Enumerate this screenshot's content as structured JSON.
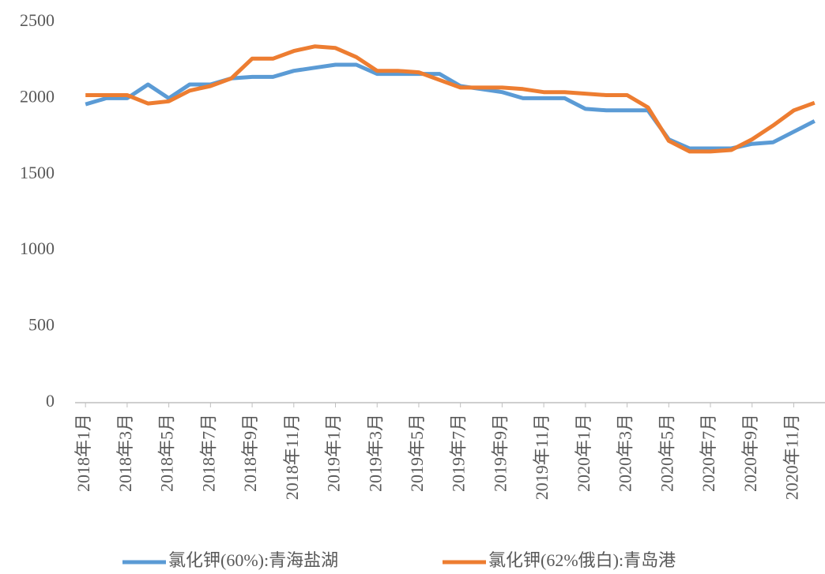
{
  "chart_data": {
    "type": "line",
    "categories": [
      "2018年1月",
      null,
      "2018年3月",
      null,
      "2018年5月",
      null,
      "2018年7月",
      null,
      "2018年9月",
      null,
      "2018年11月",
      null,
      "2019年1月",
      null,
      "2019年3月",
      null,
      "2019年5月",
      null,
      "2019年7月",
      null,
      "2019年9月",
      null,
      "2019年11月",
      null,
      "2020年1月",
      null,
      "2020年3月",
      null,
      "2020年5月",
      null,
      "2020年7月",
      null,
      "2020年9月",
      null,
      "2020年11月",
      null
    ],
    "series": [
      {
        "name": "氯化钾(60%):青海盐湖",
        "color": "#5b9bd5",
        "values": [
          1960,
          2000,
          2000,
          2090,
          2000,
          2090,
          2090,
          2130,
          2140,
          2140,
          2180,
          2200,
          2220,
          2220,
          2160,
          2160,
          2160,
          2160,
          2080,
          2060,
          2040,
          2000,
          2000,
          2000,
          1930,
          1920,
          1920,
          1920,
          1730,
          1670,
          1670,
          1670,
          1700,
          1710,
          1780,
          1850
        ]
      },
      {
        "name": "氯化钾(62%俄白):青岛港",
        "color": "#ed7d31",
        "values": [
          2020,
          2020,
          2020,
          1965,
          1980,
          2050,
          2080,
          2130,
          2260,
          2260,
          2310,
          2340,
          2330,
          2270,
          2180,
          2180,
          2170,
          2120,
          2070,
          2070,
          2070,
          2060,
          2040,
          2040,
          2030,
          2020,
          2020,
          1940,
          1720,
          1650,
          1650,
          1660,
          1730,
          1820,
          1920,
          1970
        ]
      }
    ],
    "ylim": [
      0,
      2500
    ],
    "yticks": [
      0,
      500,
      1000,
      1500,
      2000,
      2500
    ],
    "grid": false,
    "legend": "bottom"
  }
}
